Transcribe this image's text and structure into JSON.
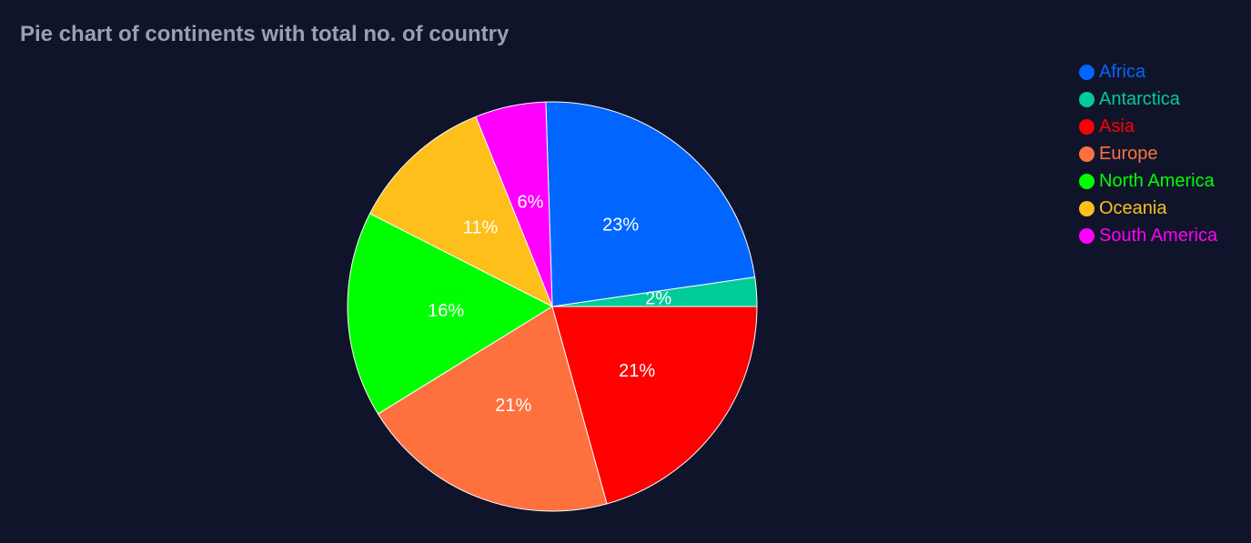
{
  "chart_data": {
    "type": "pie",
    "title": "Pie chart of continents with total no. of country",
    "legend_position": "top-right",
    "start_angle_deg": 0,
    "direction": "clockwise-from-east",
    "slices": [
      {
        "name": "Antarctica",
        "value": 2.3,
        "label": "2%",
        "color": "#00cc99"
      },
      {
        "name": "Africa",
        "value": 23.2,
        "label": "23%",
        "color": "#0066ff"
      },
      {
        "name": "South America",
        "value": 5.6,
        "label": "6%",
        "color": "#ff00ff"
      },
      {
        "name": "Oceania",
        "value": 11.4,
        "label": "11%",
        "color": "#ffbf1a"
      },
      {
        "name": "North America",
        "value": 16.3,
        "label": "16%",
        "color": "#00ff00"
      },
      {
        "name": "Europe",
        "value": 20.5,
        "label": "21%",
        "color": "#ff703f"
      },
      {
        "name": "Asia",
        "value": 20.7,
        "label": "21%",
        "color": "#ff0000"
      }
    ],
    "legend": [
      {
        "name": "Africa",
        "color": "#0066ff"
      },
      {
        "name": "Antarctica",
        "color": "#00cc99"
      },
      {
        "name": "Asia",
        "color": "#ff0000"
      },
      {
        "name": "Europe",
        "color": "#ff703f"
      },
      {
        "name": "North America",
        "color": "#00ff00"
      },
      {
        "name": "Oceania",
        "color": "#ffbf1a"
      },
      {
        "name": "South America",
        "color": "#ff00ff"
      }
    ]
  }
}
